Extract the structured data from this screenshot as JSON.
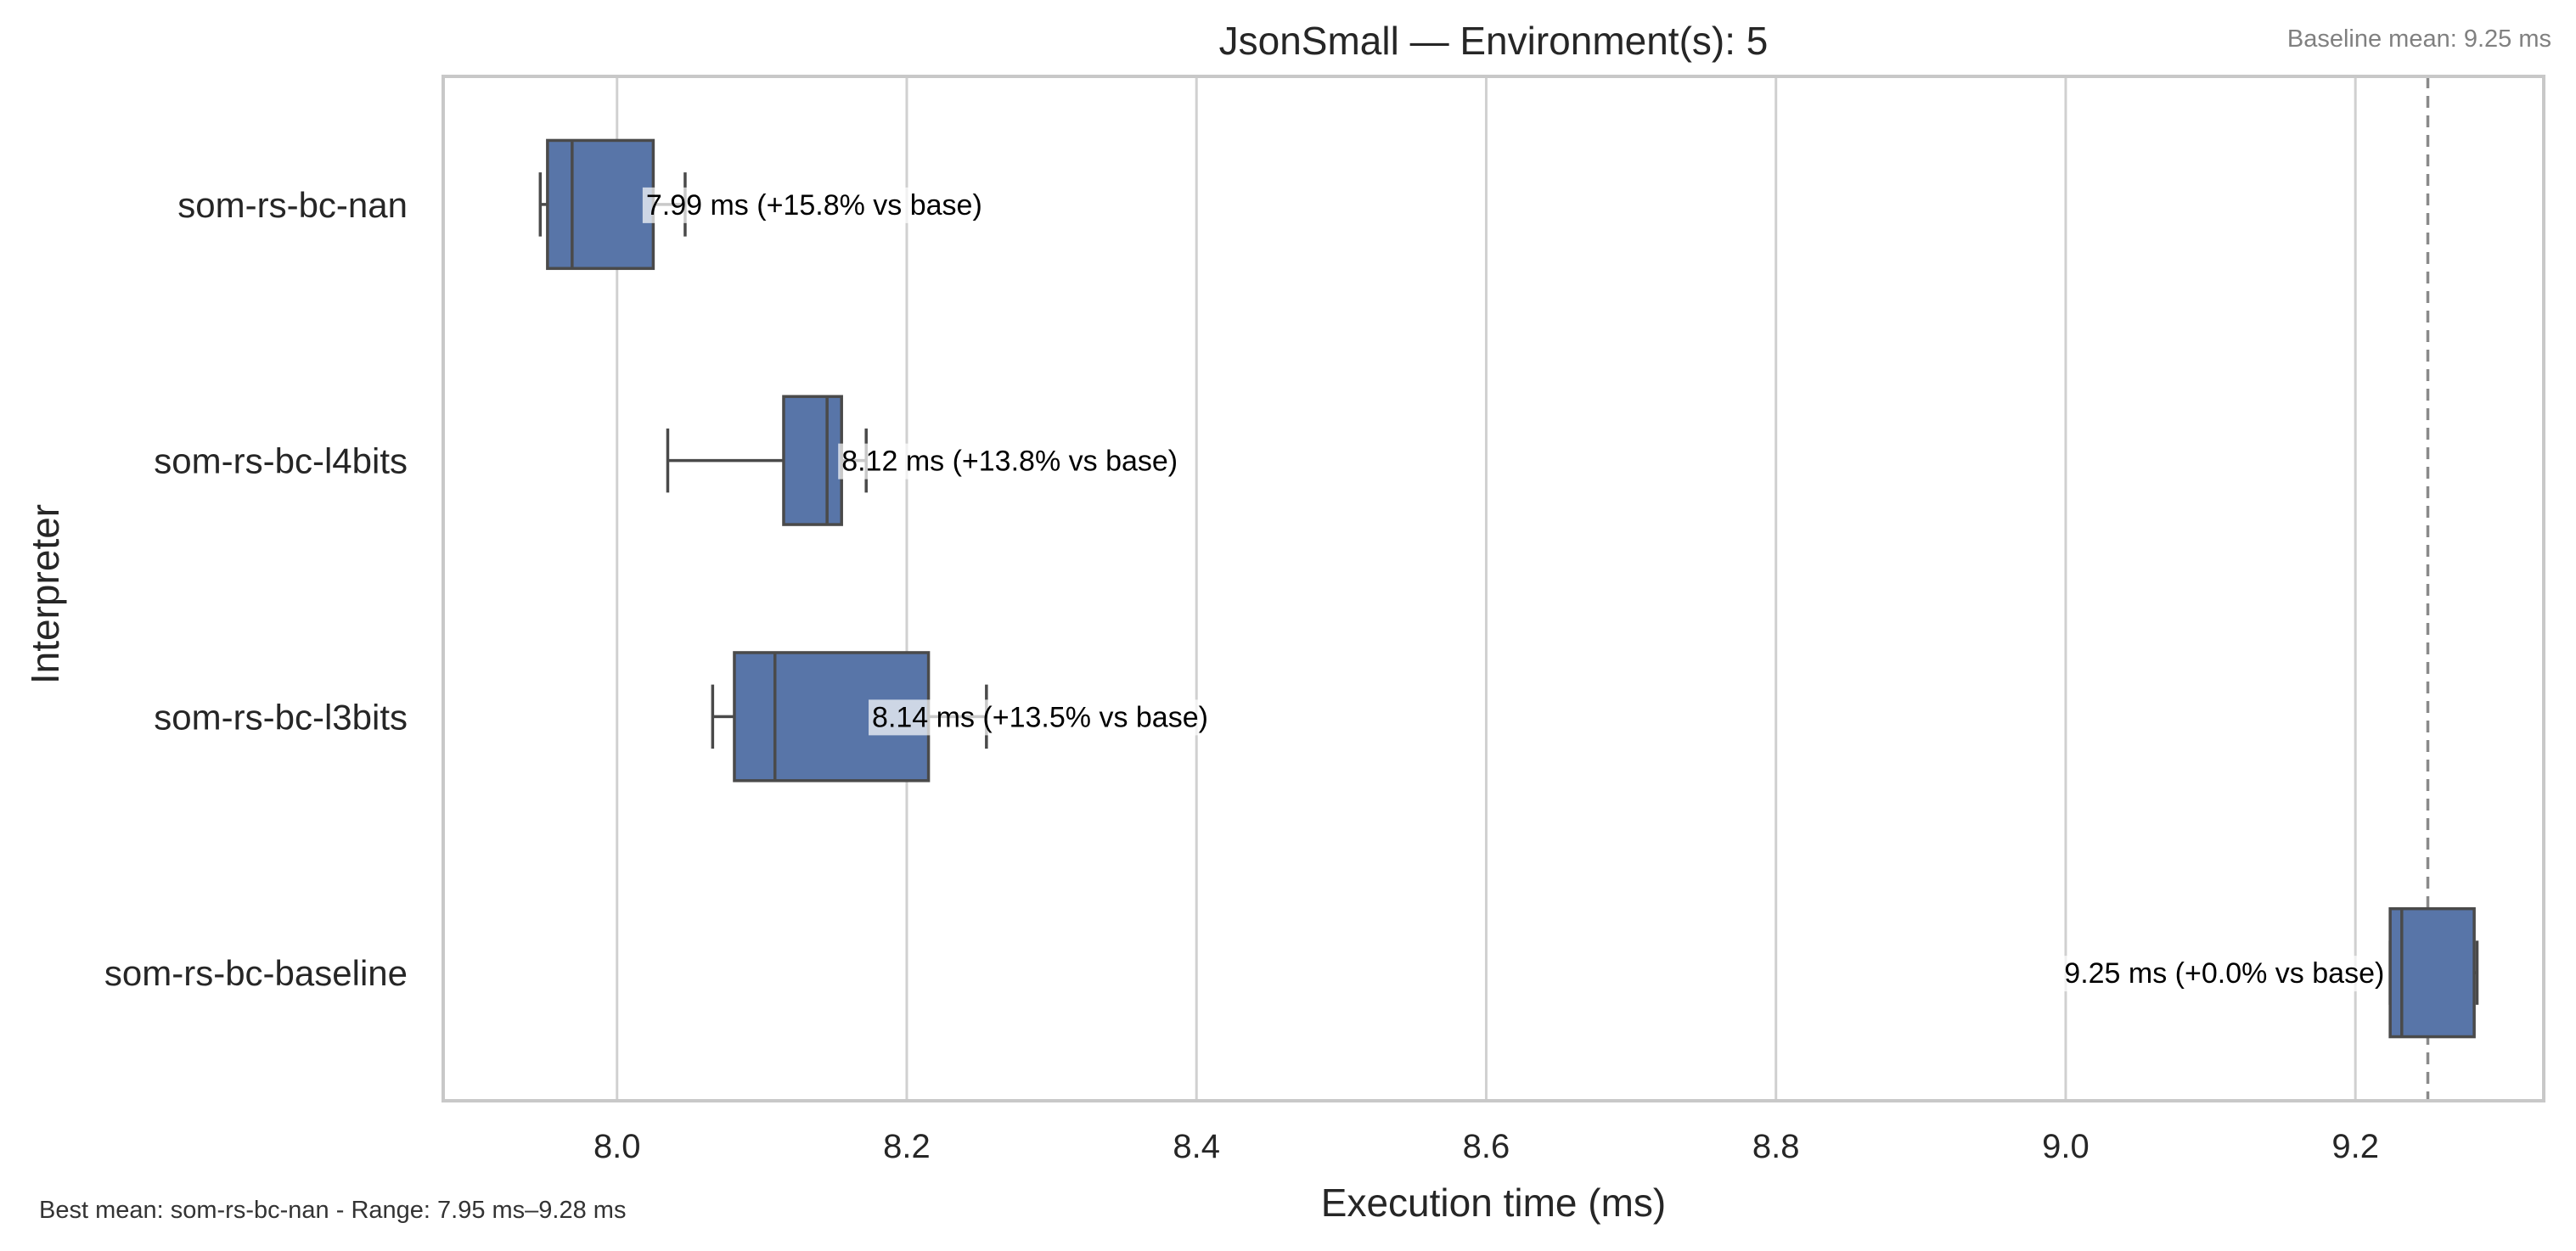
{
  "chart_data": {
    "type": "box",
    "title": "JsonSmall — Environment(s): 5",
    "xlabel": "Execution time (ms)",
    "ylabel": "Interpreter",
    "xlim": [
      7.88,
      9.33
    ],
    "xticks": [
      "8.0",
      "8.2",
      "8.4",
      "8.6",
      "8.8",
      "9.0",
      "9.2"
    ],
    "grid": "vertical",
    "orientation": "horizontal",
    "colors": {
      "box": "#5875a8",
      "line": "#4a4a4a",
      "grid": "#d0d0d0",
      "baseline": "#8a8a8a",
      "frame": "#c8c8c8"
    },
    "baseline_note": "Baseline mean: 9.25 ms",
    "baseline_value": 9.25,
    "footer": "Best mean: som-rs-bc-nan - Range: 7.95 ms–9.28 ms",
    "series": [
      {
        "category": "som-rs-bc-nan",
        "whisker_low": 7.947,
        "q1": 7.952,
        "median": 7.969,
        "q3": 8.025,
        "whisker_high": 8.047,
        "annotation": "7.99 ms  (+15.8% vs base)",
        "annotation_at": 8.02
      },
      {
        "category": "som-rs-bc-l4bits",
        "whisker_low": 8.035,
        "q1": 8.115,
        "median": 8.145,
        "q3": 8.155,
        "whisker_high": 8.172,
        "annotation": "8.12 ms  (+13.8% vs base)",
        "annotation_at": 8.155
      },
      {
        "category": "som-rs-bc-l3bits",
        "whisker_low": 8.066,
        "q1": 8.081,
        "median": 8.109,
        "q3": 8.215,
        "whisker_high": 8.255,
        "annotation": "8.14 ms  (+13.5% vs base)",
        "annotation_at": 8.176
      },
      {
        "category": "som-rs-bc-baseline",
        "whisker_low": 9.224,
        "q1": 9.224,
        "median": 9.232,
        "q3": 9.282,
        "whisker_high": 9.284,
        "annotation": "9.25 ms  (+0.0% vs base)",
        "annotation_at": 9.22,
        "annotation_anchor": "end"
      }
    ]
  }
}
